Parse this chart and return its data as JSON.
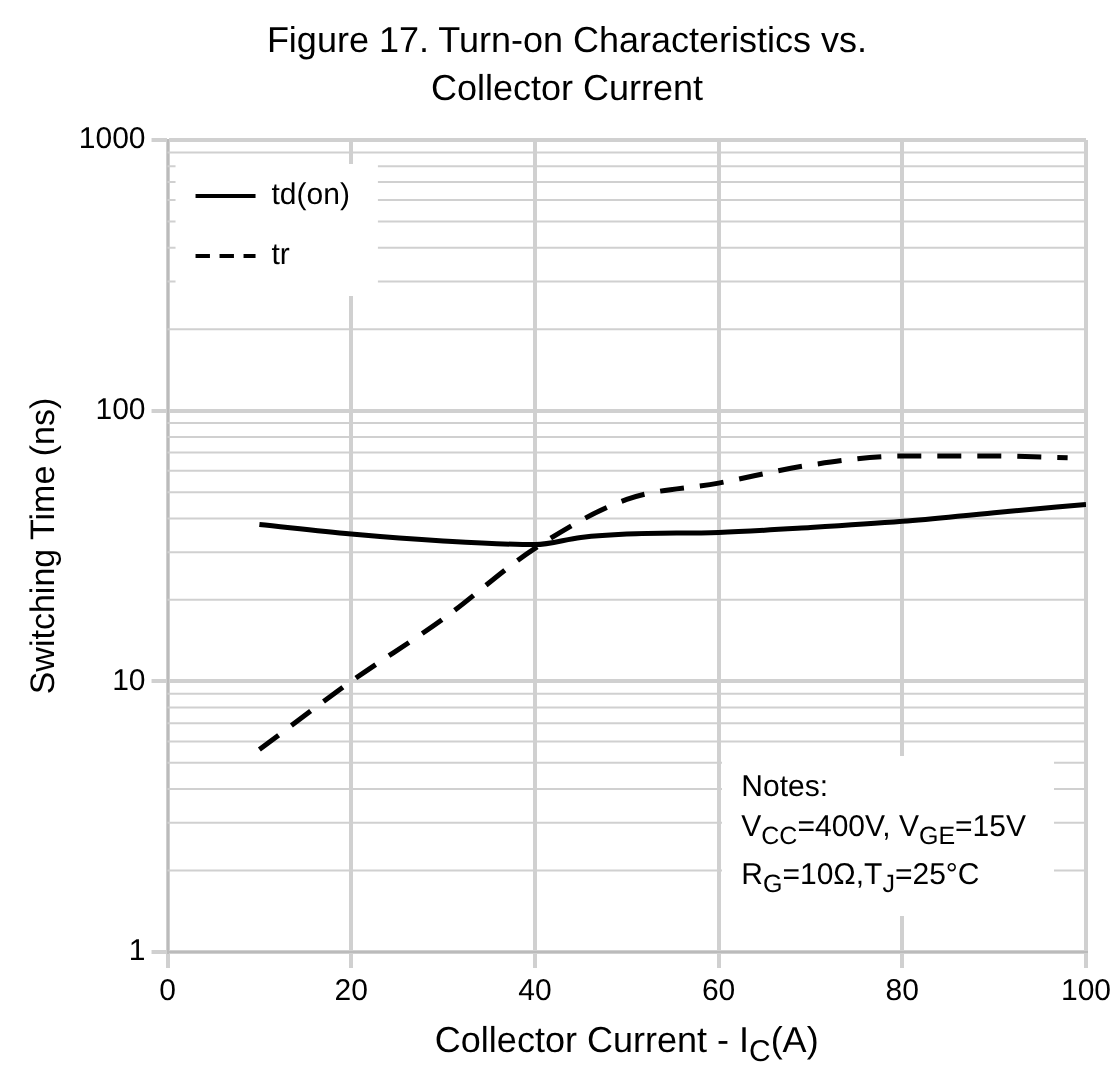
{
  "chart_data": {
    "type": "line",
    "title": "Figure 17. Turn-on Characteristics vs. Collector Current",
    "xlabel": "Collector Current - I$_{C}$(A)",
    "ylabel": "Switching Time (ns)",
    "x": [
      10,
      20,
      30,
      40,
      45,
      50,
      60,
      70,
      80,
      90,
      100
    ],
    "series": [
      {
        "name": "td(on)",
        "color": "#000000",
        "line_style": "solid",
        "values": [
          38,
          35,
          33,
          32,
          34,
          35,
          35.5,
          37,
          39,
          42,
          45
        ]
      },
      {
        "name": "tr",
        "color": "#000000",
        "line_style": "dashed",
        "x": [
          10,
          20,
          30,
          40,
          50,
          60,
          70,
          80,
          90,
          98
        ],
        "values": [
          5.6,
          10,
          17,
          31,
          47,
          54,
          63,
          68,
          68,
          67
        ]
      }
    ],
    "xlim": [
      0,
      100
    ],
    "xticks": [
      0,
      20,
      40,
      60,
      80,
      100
    ],
    "ylim": [
      1,
      1000
    ],
    "yticks": [
      1,
      10,
      100,
      1000
    ],
    "log": "y",
    "grid": true,
    "legend": "top left",
    "marker": "none",
    "annotations": [
      "Notes:\nV$_{CC}$=400V, V$_{GE}$=15V\nR$_{G}$=10Ω,T$_{J}$=25°C"
    ]
  }
}
